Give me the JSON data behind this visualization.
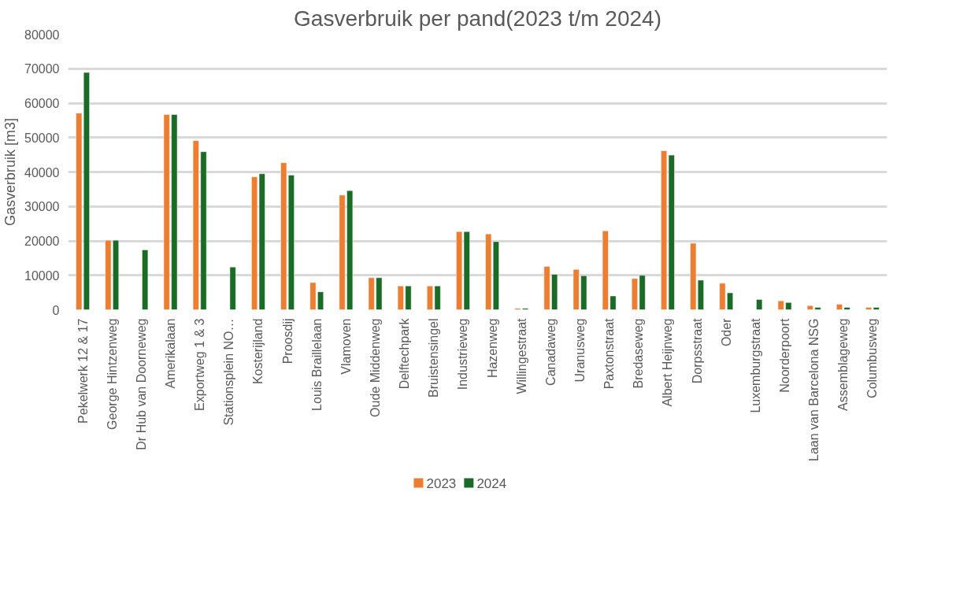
{
  "chart_data": {
    "type": "bar",
    "title": "Gasverbruik per pand(2023 t/m 2024)",
    "ylabel": "Gasverbruik [m3]",
    "categories": [
      "Pekelwerk 12 & 17",
      "George Hintzenweg",
      "Dr Hub van Doorneweg",
      "Amerikalaan",
      "Exportweg 1 & 3",
      "Stationsplein NO…",
      "Kosterijland",
      "Proosdij",
      "Louis Braillelaan",
      "Vlamoven",
      "Oude Middenweg",
      "Delftechpark",
      "Bruistensingel",
      "Industrieweg",
      "Hazenweg",
      "Willingestraat",
      "Canadaweg",
      "Uranusweg",
      "Paxtonstraat",
      "Bredaseweg",
      "Albert Heijnweg",
      "Dorpsstraat",
      "Oder",
      "Luxemburgstraat",
      "Noorderpoort",
      "Laan van Barcelona NSG",
      "Assemblageweg",
      "Columbusweg"
    ],
    "series": [
      {
        "name": "2023",
        "color": "#ed7d31",
        "values": [
          57100,
          20200,
          null,
          56700,
          49100,
          null,
          38600,
          42700,
          7900,
          33300,
          9300,
          6900,
          6900,
          22700,
          22000,
          400,
          12600,
          11700,
          22900,
          9100,
          46200,
          19300,
          7700,
          null,
          2600,
          1200,
          1600,
          700
        ]
      },
      {
        "name": "2024",
        "color": "#1a6b26",
        "values": [
          68900,
          20200,
          17400,
          56700,
          45900,
          12400,
          39500,
          39100,
          5200,
          34600,
          9300,
          6900,
          6900,
          22700,
          19800,
          400,
          10300,
          9900,
          4000,
          10000,
          44900,
          8600,
          4900,
          3000,
          2100,
          700,
          700,
          700
        ]
      }
    ],
    "ylim": [
      0,
      80000
    ],
    "yticks": [
      0,
      10000,
      20000,
      30000,
      40000,
      50000,
      60000,
      70000,
      80000
    ],
    "grid": "y",
    "legend": "bottom"
  }
}
